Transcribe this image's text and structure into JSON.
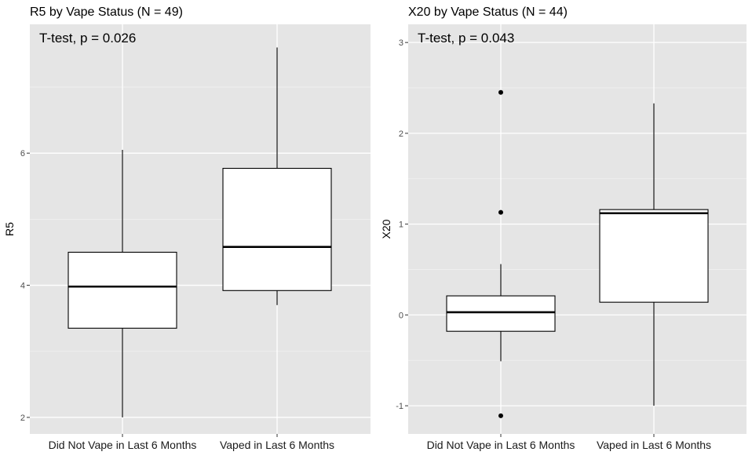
{
  "chart_data": [
    {
      "type": "box",
      "title": "R5 by Vape Status (N = 49)",
      "annotation": "T-test, p = 0.026",
      "xlabel": "",
      "ylabel": "R5",
      "categories": [
        "Did Not Vape in Last 6 Months",
        "Vaped in Last 6 Months"
      ],
      "ylim": [
        1.75,
        7.95
      ],
      "yticks": [
        2,
        4,
        6
      ],
      "grid": true,
      "boxes": [
        {
          "category": "Did Not Vape in Last 6 Months",
          "whisker_low": 2.0,
          "q1": 3.35,
          "median": 3.98,
          "q3": 4.5,
          "whisker_high": 6.05,
          "outliers": []
        },
        {
          "category": "Vaped in Last 6 Months",
          "whisker_low": 3.7,
          "q1": 3.92,
          "median": 4.58,
          "q3": 5.77,
          "whisker_high": 7.6,
          "outliers": []
        }
      ]
    },
    {
      "type": "box",
      "title": "X20 by Vape Status (N = 44)",
      "annotation": "T-test, p = 0.043",
      "xlabel": "",
      "ylabel": "X20",
      "categories": [
        "Did Not Vape in Last 6 Months",
        "Vaped in Last 6 Months"
      ],
      "ylim": [
        -1.31,
        3.2
      ],
      "yticks": [
        -1,
        0,
        1,
        2,
        3
      ],
      "grid": true,
      "boxes": [
        {
          "category": "Did Not Vape in Last 6 Months",
          "whisker_low": -0.51,
          "q1": -0.18,
          "median": 0.03,
          "q3": 0.21,
          "whisker_high": 0.56,
          "outliers": [
            2.45,
            1.13,
            -1.11
          ]
        },
        {
          "category": "Vaped in Last 6 Months",
          "whisker_low": -1.0,
          "q1": 0.14,
          "median": 1.12,
          "q3": 1.16,
          "whisker_high": 2.33,
          "outliers": []
        }
      ]
    }
  ]
}
